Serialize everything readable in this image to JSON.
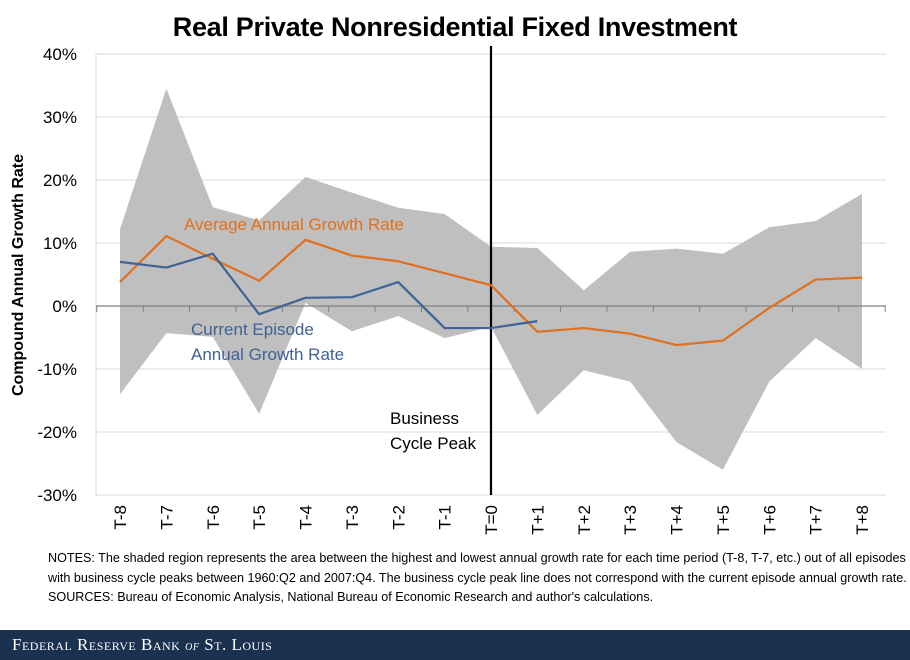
{
  "chart_data": {
    "type": "line",
    "title": "Real Private Nonresidential Fixed Investment",
    "xlabel": "",
    "ylabel": "Compound Annual Growth Rate",
    "ylim": [
      -30,
      40
    ],
    "yticks": [
      40,
      30,
      20,
      10,
      0,
      -10,
      -20,
      -30
    ],
    "ytick_labels": [
      "40%",
      "30%",
      "20%",
      "10%",
      "0%",
      "-10%",
      "-20%",
      "-30%"
    ],
    "grid": true,
    "categories": [
      "T-8",
      "T-7",
      "T-6",
      "T-5",
      "T-4",
      "T-3",
      "T-2",
      "T-1",
      "T=0",
      "T+1",
      "T+2",
      "T+3",
      "T+4",
      "T+5",
      "T+6",
      "T+7",
      "T+8"
    ],
    "band": {
      "name": "Range of highest and lowest annual growth rate",
      "color": "#bfbfbf",
      "upper": [
        12.2,
        34.5,
        15.7,
        13.6,
        20.5,
        18.0,
        15.6,
        14.6,
        9.4,
        9.2,
        2.5,
        8.6,
        9.1,
        8.3,
        12.5,
        13.5,
        17.8
      ],
      "lower": [
        -14.0,
        -4.3,
        -4.9,
        -17.1,
        0.5,
        -4.0,
        -1.6,
        -5.1,
        -3.3,
        -17.3,
        -10.2,
        -12.0,
        -21.6,
        -26.0,
        -12.0,
        -5.1,
        -10.0
      ]
    },
    "series": [
      {
        "name": "Average Annual Growth Rate",
        "color": "#e0701e",
        "values": [
          3.8,
          11.1,
          7.5,
          4.0,
          10.5,
          8.0,
          7.1,
          5.2,
          3.3,
          -4.1,
          -3.5,
          -4.4,
          -6.2,
          -5.5,
          -0.3,
          4.2,
          4.5
        ]
      },
      {
        "name": "Current Episode Annual Growth Rate",
        "color": "#3e6396",
        "values": [
          7.0,
          6.1,
          8.3,
          -1.3,
          1.3,
          1.4,
          3.8,
          -3.5,
          -3.5,
          -2.4,
          null,
          null,
          null,
          null,
          null,
          null,
          null
        ]
      }
    ],
    "annotations": {
      "average_label": "Average Annual Growth Rate",
      "current_label_line1": "Current Episode",
      "current_label_line2": "Annual Growth Rate",
      "peak_label_line1": "Business",
      "peak_label_line2": "Cycle Peak",
      "peak_category": "T=0"
    }
  },
  "notes": {
    "notes_text": "NOTES: The shaded region represents the area between the highest and lowest annual growth rate for each time period (T-8, T-7, etc.) out of all episodes with business cycle peaks between 1960:Q2 and 2007:Q4. The business cycle peak line does not correspond with the current episode annual growth rate.",
    "sources_text": "SOURCES: Bureau of Economic Analysis, National Bureau of Economic Research and author's calculations."
  },
  "footer": {
    "part1": "Federal Reserve Bank ",
    "part2": "of",
    "part3": " St. Louis",
    "background": "#1b3150"
  }
}
